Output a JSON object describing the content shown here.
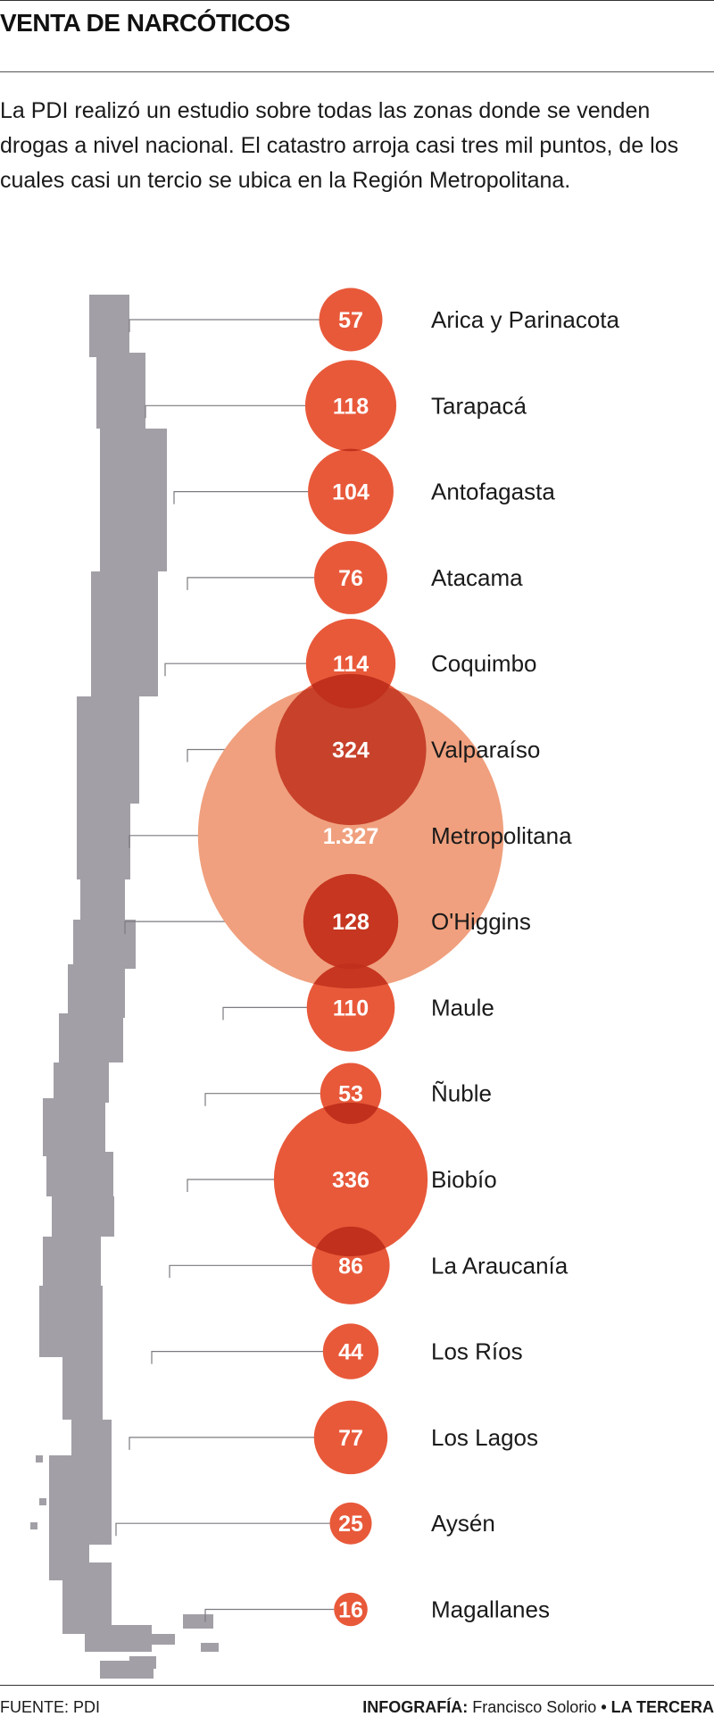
{
  "header": {
    "title": "VENTA DE NARCÓTICOS",
    "intro": "La PDI realizó un estudio sobre todas las zonas donde se venden drogas a nivel nacional. El catastro arroja casi tres mil puntos, de los cuales casi un tercio se ubica en la Región Metropolitana."
  },
  "chart_data": {
    "type": "bubble",
    "title": "VENTA DE NARCÓTICOS",
    "categories": [
      "Arica y Parinacota",
      "Tarapacá",
      "Antofagasta",
      "Atacama",
      "Coquimbo",
      "Valparaíso",
      "Metropolitana",
      "O'Higgins",
      "Maule",
      "Ñuble",
      "Biobío",
      "La Araucanía",
      "Los Ríos",
      "Los Lagos",
      "Aysén",
      "Magallanes"
    ],
    "values": [
      57,
      118,
      104,
      76,
      114,
      324,
      1327,
      128,
      110,
      53,
      336,
      86,
      44,
      77,
      25,
      16
    ],
    "value_labels": [
      "57",
      "118",
      "104",
      "76",
      "114",
      "324",
      "1.327",
      "128",
      "110",
      "53",
      "336",
      "86",
      "44",
      "77",
      "25",
      "16"
    ],
    "bubble_color": "#e8593a",
    "highlight_color": "#f0a07e",
    "overlap_color": "#c0301c",
    "map_color": "#a39fa6"
  },
  "footer": {
    "source": "FUENTE: PDI",
    "credit_label": "INFOGRAFÍA:",
    "credit_name": "Francisco Solorio",
    "separator": "•",
    "publication": "LA TERCERA"
  }
}
